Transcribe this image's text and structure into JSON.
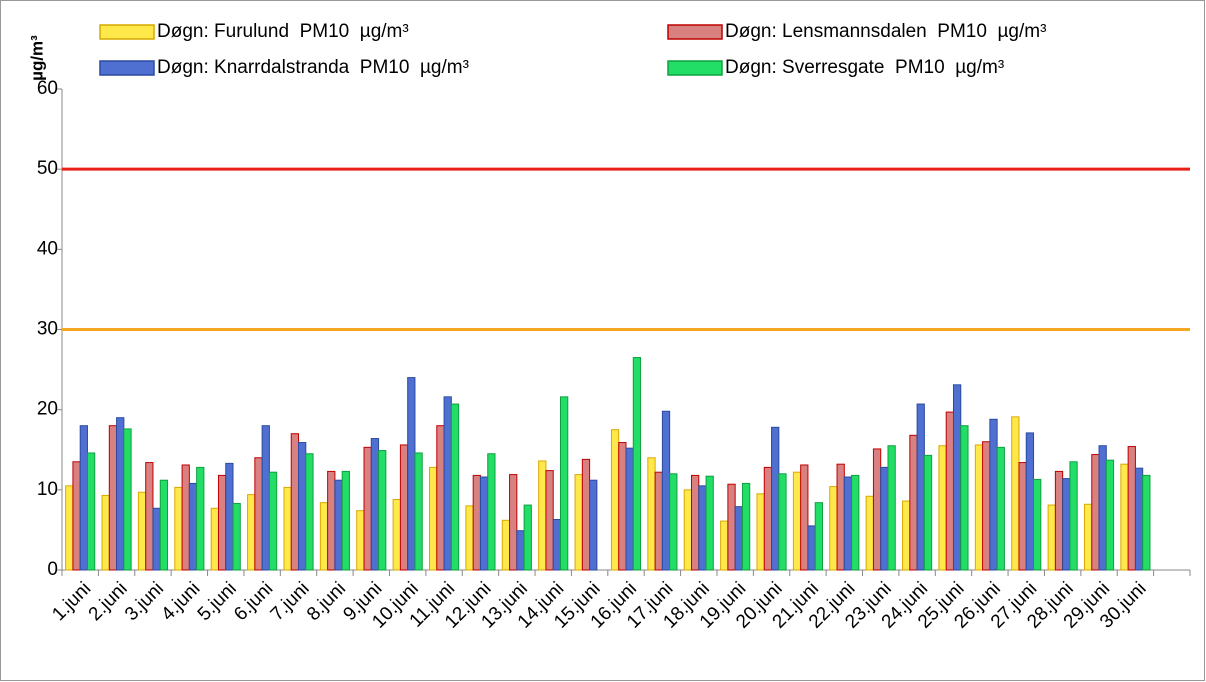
{
  "chart_data": {
    "type": "bar",
    "y_label": "µg/m³",
    "categories": [
      "1.juni",
      "2.juni",
      "3.juni",
      "4.juni",
      "5.juni",
      "6.juni",
      "7.juni",
      "8.juni",
      "9.juni",
      "10.juni",
      "11.juni",
      "12.juni",
      "13.juni",
      "14.juni",
      "15.juni",
      "16.juni",
      "17.juni",
      "18.juni",
      "19.juni",
      "20.juni",
      "21.juni",
      "22.juni",
      "23.juni",
      "24.juni",
      "25.juni",
      "26.juni",
      "27.juni",
      "28.juni",
      "29.juni",
      "30.juni",
      null
    ],
    "series": [
      {
        "name": "Døgn: Furulund  PM10  µg/m³",
        "color": "#ffe84a",
        "edgecolor": "#d9a900",
        "values": [
          10.5,
          9.3,
          9.7,
          10.3,
          7.7,
          9.4,
          10.3,
          8.4,
          7.4,
          8.8,
          12.8,
          8,
          6.2,
          13.6,
          11.9,
          17.5,
          14,
          10,
          6.1,
          9.5,
          12.2,
          10.4,
          9.2,
          8.6,
          15.5,
          15.6,
          19.1,
          8.1,
          8.2,
          13.2,
          null
        ]
      },
      {
        "name": "Døgn: Lensmannsdalen  PM10  µg/m³",
        "color": "#d98080",
        "edgecolor": "#c00000",
        "values": [
          13.5,
          18,
          13.4,
          13.1,
          11.8,
          14,
          17,
          12.3,
          15.3,
          15.6,
          18,
          11.8,
          11.9,
          12.4,
          13.8,
          15.9,
          12.2,
          11.8,
          10.7,
          12.8,
          13.1,
          13.2,
          15.1,
          16.8,
          19.7,
          16,
          13.4,
          12.3,
          14.4,
          15.4,
          null
        ]
      },
      {
        "name": "Døgn: Knarrdalstranda  PM10  µg/m³",
        "color": "#4f6fd1",
        "edgecolor": "#2b4ba0",
        "values": [
          18,
          19,
          7.7,
          10.8,
          13.3,
          18,
          15.9,
          11.2,
          16.4,
          24,
          21.6,
          11.6,
          4.9,
          6.3,
          11.2,
          15.2,
          19.8,
          10.5,
          7.9,
          17.8,
          5.5,
          11.6,
          12.8,
          20.7,
          23.1,
          18.8,
          17.1,
          11.4,
          15.5,
          12.7,
          null
        ]
      },
      {
        "name": "Døgn: Sverresgate  PM10  µg/m³",
        "color": "#22dd66",
        "edgecolor": "#10a040",
        "values": [
          14.6,
          17.6,
          11.2,
          12.8,
          8.3,
          12.2,
          14.5,
          12.3,
          14.9,
          14.6,
          20.7,
          14.5,
          8.1,
          21.6,
          null,
          26.5,
          12,
          11.7,
          10.8,
          12,
          8.4,
          11.8,
          15.5,
          14.3,
          18,
          15.3,
          11.3,
          13.5,
          13.7,
          11.8,
          null
        ]
      }
    ],
    "reference_lines": [
      {
        "value": 50,
        "color": "#e8201a"
      },
      {
        "value": 30,
        "color": "#f5a623"
      }
    ],
    "ylim": [
      0,
      60
    ],
    "yticks": [
      0,
      10,
      20,
      30,
      40,
      50,
      60
    ],
    "grid": false
  }
}
